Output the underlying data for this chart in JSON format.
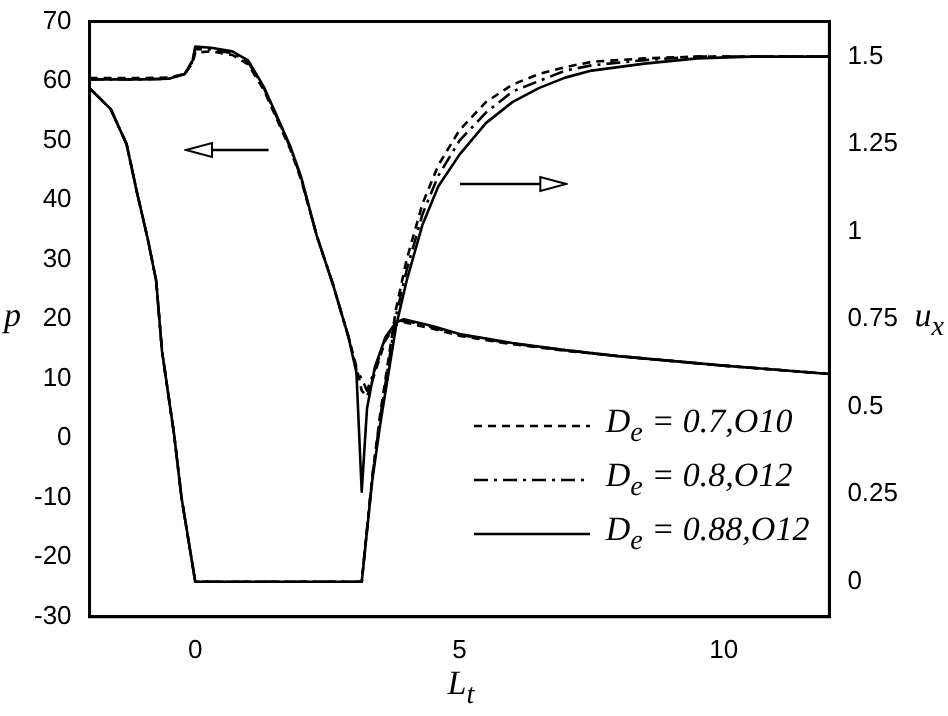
{
  "chart_data": {
    "type": "line",
    "xlabel": "L$_{t}$",
    "ylabel": "p",
    "y2label": "u$_{x}$",
    "xlim": [
      -2,
      12
    ],
    "xticks": [
      0,
      5,
      10
    ],
    "ylim": [
      -30,
      70
    ],
    "yticks": [
      -30,
      -20,
      -10,
      0,
      10,
      20,
      30,
      40,
      50,
      60,
      70
    ],
    "y2lim": [
      -0.1,
      1.6
    ],
    "y2ticks": [
      0,
      0.25,
      0.5,
      0.75,
      1,
      1.25,
      1.5
    ],
    "grid": false,
    "legend": "bottom right",
    "marker": "none",
    "series": [
      {
        "name": "D$_{e}$ = 0.7,O10",
        "color": "#000000",
        "line_style": "dashed",
        "axis": "y",
        "x": [
          -2,
          -1,
          -0.5,
          -0.2,
          -0.05,
          0,
          0.3,
          0.7,
          1.0,
          1.3,
          1.5,
          1.8,
          2.0,
          2.3,
          2.6,
          2.9,
          3.05,
          3.15,
          3.25,
          3.4,
          3.6,
          3.8,
          3.95,
          4.5,
          5,
          6,
          7,
          8,
          9,
          10,
          11,
          12
        ],
        "values": [
          60.5,
          60.5,
          60.6,
          61.2,
          63,
          64.8,
          65,
          64.4,
          62.8,
          58.5,
          54.5,
          48.5,
          43.5,
          34,
          26,
          17,
          12,
          8,
          7,
          11,
          16.5,
          19,
          19.5,
          18.4,
          17.2,
          15.8,
          14.7,
          13.8,
          13,
          12.2,
          11.5,
          10.8
        ]
      },
      {
        "name": "D$_{e}$ = 0.8,O12",
        "color": "#000000",
        "line_style": "dashdot",
        "axis": "y",
        "x": [
          -2,
          -1,
          -0.5,
          -0.2,
          -0.05,
          0,
          0.3,
          0.7,
          1.0,
          1.3,
          1.5,
          1.8,
          2.0,
          2.3,
          2.6,
          2.9,
          3.05,
          3.15,
          3.25,
          3.4,
          3.6,
          3.8,
          3.95,
          4.5,
          5,
          6,
          7,
          8,
          9,
          10,
          11,
          12
        ],
        "values": [
          60.3,
          60.3,
          60.4,
          61.2,
          63.3,
          65.4,
          65.3,
          64.7,
          63.2,
          58.8,
          54.8,
          48.8,
          43.8,
          34,
          26,
          17,
          11.5,
          10,
          8,
          11.5,
          16.8,
          19.3,
          19.8,
          18.6,
          17.4,
          15.9,
          14.8,
          13.8,
          13,
          12.2,
          11.5,
          10.8
        ]
      },
      {
        "name": "D$_{e}$ = 0.88,O12",
        "color": "#000000",
        "line_style": "solid",
        "axis": "y",
        "x": [
          -2,
          -1,
          -0.5,
          -0.2,
          -0.05,
          0,
          0.3,
          0.7,
          1.0,
          1.3,
          1.5,
          1.8,
          2.0,
          2.3,
          2.6,
          2.9,
          3.05,
          3.15,
          3.25,
          3.4,
          3.6,
          3.8,
          3.95,
          4.5,
          5,
          6,
          7,
          8,
          9,
          10,
          11,
          12
        ],
        "values": [
          60.3,
          60.3,
          60.4,
          61.2,
          63.5,
          65.8,
          65.6,
          65,
          63.5,
          59,
          55,
          49,
          44,
          34,
          26,
          17,
          11,
          -9,
          5,
          12,
          17,
          19.5,
          20,
          18.8,
          17.5,
          16,
          14.8,
          13.8,
          13,
          12.2,
          11.5,
          10.8
        ]
      },
      {
        "color": "#000000",
        "line_style": "dashed",
        "axis": "y2",
        "x": [
          -2,
          -1.6,
          -1.3,
          -1.1,
          -0.9,
          -0.74,
          -0.63,
          -0.4,
          -0.26,
          0,
          3.15,
          3.35,
          3.5,
          3.8,
          4.0,
          4.3,
          4.6,
          5,
          5.5,
          6,
          6.5,
          7,
          7.5,
          8.5,
          9.5,
          10.5,
          12
        ],
        "values": [
          1.41,
          1.35,
          1.25,
          1.11,
          0.98,
          0.86,
          0.66,
          0.42,
          0.24,
          0,
          0,
          0.3,
          0.48,
          0.78,
          0.92,
          1.08,
          1.19,
          1.29,
          1.37,
          1.42,
          1.45,
          1.47,
          1.485,
          1.495,
          1.5,
          1.5,
          1.5
        ]
      },
      {
        "color": "#000000",
        "line_style": "dashdot",
        "axis": "y2",
        "x": [
          -2,
          -1.6,
          -1.3,
          -1.1,
          -0.9,
          -0.74,
          -0.63,
          -0.4,
          -0.26,
          0,
          3.15,
          3.35,
          3.5,
          3.8,
          4.0,
          4.3,
          4.6,
          5,
          5.5,
          6,
          6.5,
          7,
          7.5,
          8.5,
          9.5,
          10.5,
          12
        ],
        "values": [
          1.41,
          1.35,
          1.25,
          1.11,
          0.98,
          0.86,
          0.66,
          0.42,
          0.24,
          0,
          0,
          0.3,
          0.47,
          0.76,
          0.89,
          1.05,
          1.16,
          1.26,
          1.34,
          1.4,
          1.43,
          1.46,
          1.475,
          1.49,
          1.5,
          1.5,
          1.5
        ]
      },
      {
        "color": "#000000",
        "line_style": "solid",
        "axis": "y2",
        "x": [
          -2,
          -1.6,
          -1.3,
          -1.1,
          -0.9,
          -0.74,
          -0.63,
          -0.4,
          -0.26,
          0,
          3.15,
          3.35,
          3.5,
          3.8,
          4.0,
          4.3,
          4.6,
          5,
          5.5,
          6,
          6.5,
          7,
          7.5,
          8.5,
          9.5,
          10.5,
          12
        ],
        "values": [
          1.41,
          1.35,
          1.25,
          1.11,
          0.98,
          0.86,
          0.66,
          0.42,
          0.24,
          0,
          0,
          0.29,
          0.45,
          0.73,
          0.86,
          1.02,
          1.13,
          1.22,
          1.31,
          1.37,
          1.41,
          1.44,
          1.46,
          1.48,
          1.495,
          1.5,
          1.5
        ]
      }
    ]
  }
}
